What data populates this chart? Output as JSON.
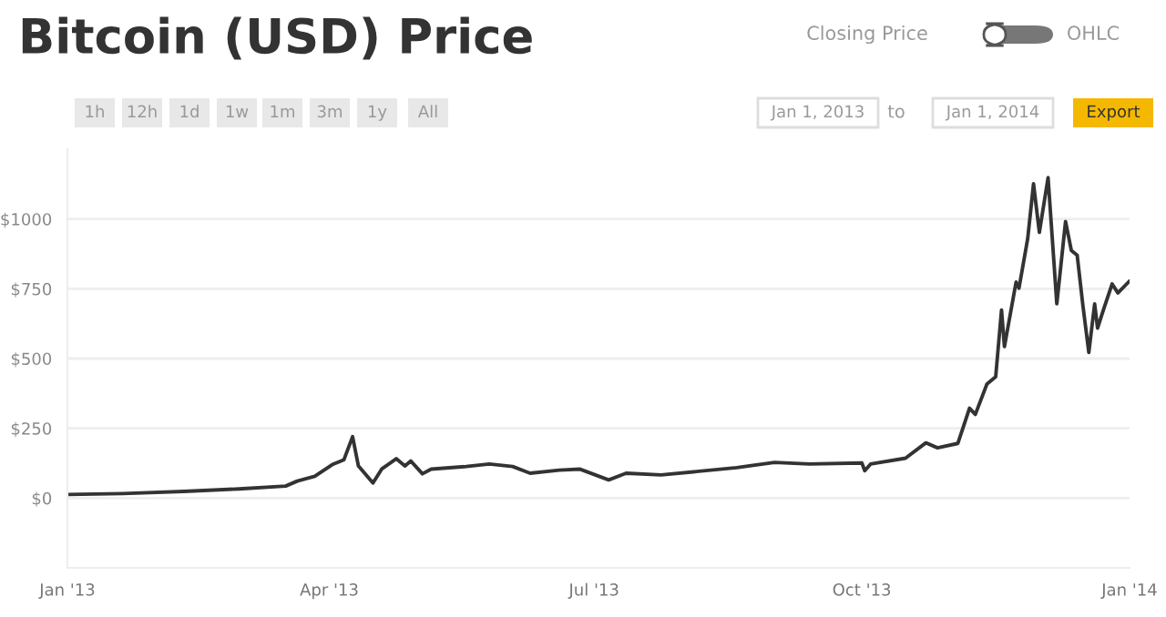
{
  "chart_data": {
    "type": "line",
    "title": "Bitcoin (USD) Price",
    "annotations": [
      "Closing Price",
      "OHLC",
      "1h",
      "12h",
      "1d",
      "1w",
      "1m",
      "3m",
      "1y",
      "All",
      "Jan 1, 2013",
      "to",
      "Jan 1, 2014",
      "Export"
    ],
    "x": [
      "2013-01-01",
      "2013-01-20",
      "2013-02-10",
      "2013-03-01",
      "2013-03-17",
      "2013-03-21",
      "2013-03-27",
      "2013-04-02",
      "2013-04-06",
      "2013-04-09",
      "2013-04-11",
      "2013-04-16",
      "2013-04-19",
      "2013-04-24",
      "2013-04-27",
      "2013-04-29",
      "2013-05-03",
      "2013-05-06",
      "2013-05-18",
      "2013-05-26",
      "2013-06-03",
      "2013-06-09",
      "2013-06-19",
      "2013-06-26",
      "2013-07-06",
      "2013-07-12",
      "2013-07-24",
      "2013-08-19",
      "2013-09-01",
      "2013-09-13",
      "2013-10-01",
      "2013-10-02",
      "2013-10-04",
      "2013-10-16",
      "2013-10-23",
      "2013-10-27",
      "2013-11-03",
      "2013-11-07",
      "2013-11-09",
      "2013-11-13",
      "2013-11-16",
      "2013-11-18",
      "2013-11-19",
      "2013-11-23",
      "2013-11-24",
      "2013-11-27",
      "2013-11-29",
      "2013-12-01",
      "2013-12-04",
      "2013-12-07",
      "2013-12-10",
      "2013-12-12",
      "2013-12-14",
      "2013-12-16",
      "2013-12-18",
      "2013-12-20",
      "2013-12-21",
      "2013-12-23",
      "2013-12-26",
      "2013-12-28",
      "2014-01-01"
    ],
    "series": [
      {
        "color": "#333333",
        "values": [
          13,
          16,
          24,
          33,
          43,
          61,
          78,
          120,
          137,
          220,
          115,
          54,
          104,
          141,
          115,
          133,
          87,
          104,
          113,
          122,
          113,
          89,
          100,
          104,
          65,
          89,
          83,
          109,
          128,
          122,
          126,
          98,
          122,
          143,
          198,
          180,
          196,
          322,
          300,
          409,
          435,
          674,
          543,
          774,
          752,
          930,
          1126,
          952,
          1148,
          696,
          991,
          887,
          870,
          687,
          522,
          696,
          609,
          674,
          767,
          735,
          778
        ]
      }
    ],
    "xlim": [
      "2013-01-01",
      "2014-01-01"
    ],
    "xticks": [
      {
        "value": "2013-01-01",
        "label": "Jan '13"
      },
      {
        "value": "2013-04-01",
        "label": "Apr '13"
      },
      {
        "value": "2013-07-01",
        "label": "Jul '13"
      },
      {
        "value": "2013-10-01",
        "label": "Oct '13"
      },
      {
        "value": "2014-01-01",
        "label": "Jan '14"
      }
    ],
    "ylim": [
      -250,
      1250
    ],
    "yticks": [
      {
        "value": 0,
        "label": "$0"
      },
      {
        "value": 250,
        "label": "$250"
      },
      {
        "value": 500,
        "label": "$500"
      },
      {
        "value": 750,
        "label": "$750"
      },
      {
        "value": 1000,
        "label": "$1000"
      }
    ],
    "grid": "y",
    "legend": false,
    "line_style": "solid",
    "marker": "none"
  }
}
